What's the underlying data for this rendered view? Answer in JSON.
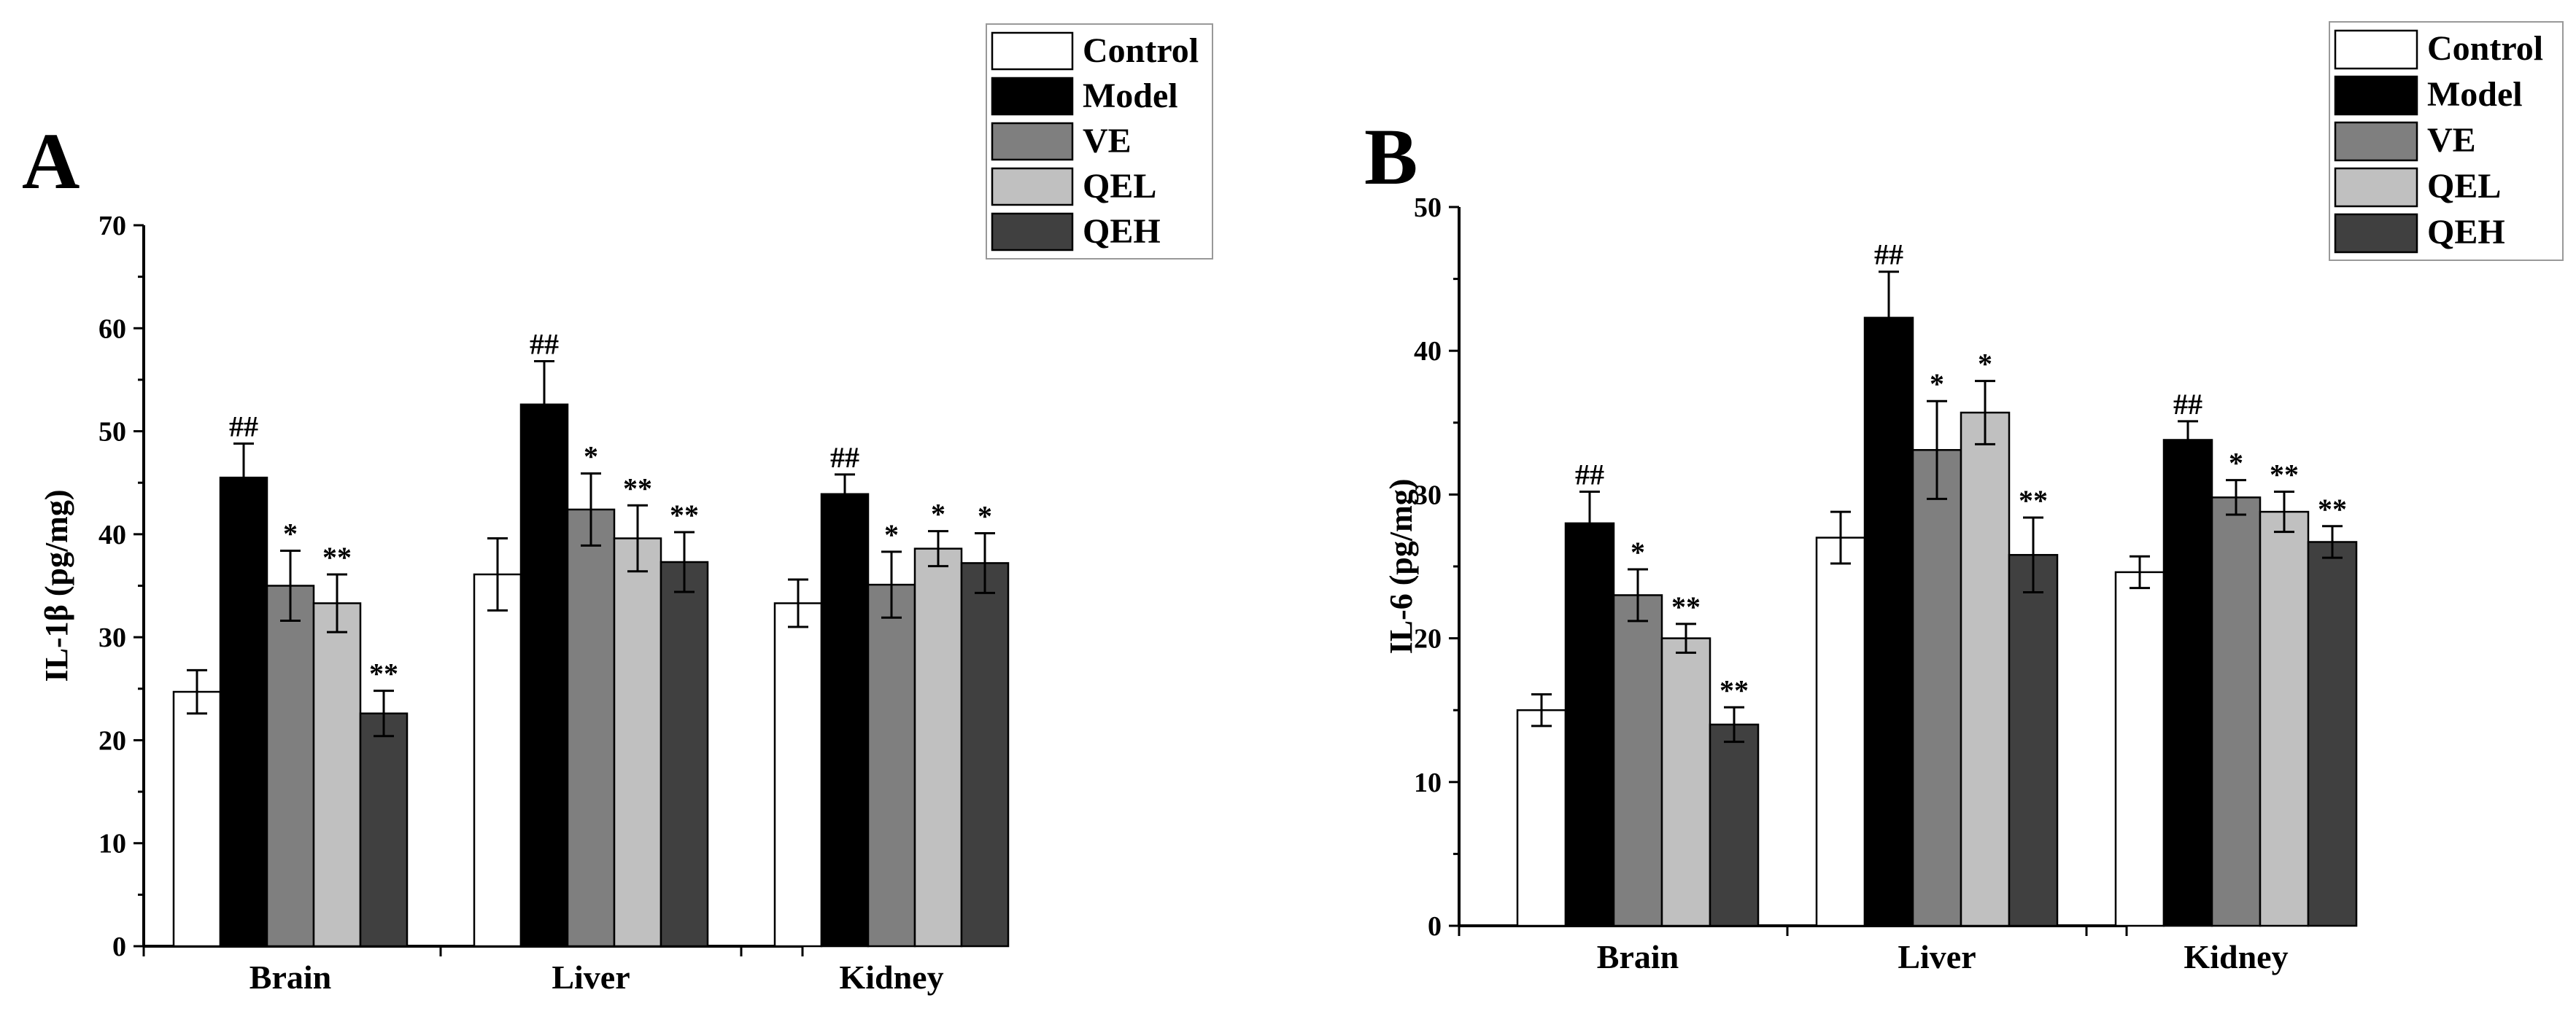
{
  "chart_data": [
    {
      "type": "bar",
      "panel": "A",
      "ylabel": "IL-1β (pg/mg)",
      "ylim": [
        0,
        70
      ],
      "yticks": [
        0,
        10,
        20,
        30,
        40,
        50,
        60,
        70
      ],
      "categories": [
        "Brain",
        "Liver",
        "Kidney"
      ],
      "legend_position": "top-right",
      "series": [
        {
          "name": "Control",
          "color": "#ffffff",
          "values": [
            24.7,
            36.1,
            33.3
          ],
          "errors": [
            2.1,
            3.5,
            2.3
          ],
          "sig": [
            "",
            "",
            ""
          ]
        },
        {
          "name": "Model",
          "color": "#000000",
          "values": [
            45.5,
            52.6,
            43.9
          ],
          "errors": [
            3.3,
            4.2,
            1.9
          ],
          "sig": [
            "##",
            "##",
            "##"
          ]
        },
        {
          "name": "VE",
          "color": "#7f7f7f",
          "values": [
            35.0,
            42.4,
            35.1
          ],
          "errors": [
            3.4,
            3.5,
            3.2
          ],
          "sig": [
            "*",
            "*",
            "*"
          ]
        },
        {
          "name": "QEL",
          "color": "#c0c0c0",
          "values": [
            33.3,
            39.6,
            38.6
          ],
          "errors": [
            2.8,
            3.2,
            1.7
          ],
          "sig": [
            "**",
            "**",
            "*"
          ]
        },
        {
          "name": "QEH",
          "color": "#404040",
          "values": [
            22.6,
            37.3,
            37.2
          ],
          "errors": [
            2.2,
            2.9,
            2.9
          ],
          "sig": [
            "**",
            "**",
            "*"
          ]
        }
      ]
    },
    {
      "type": "bar",
      "panel": "B",
      "ylabel": "IL-6 (pg/mg)",
      "ylim": [
        0,
        50
      ],
      "yticks": [
        0,
        10,
        20,
        30,
        40,
        50
      ],
      "categories": [
        "Brain",
        "Liver",
        "Kidney"
      ],
      "legend_position": "top-right",
      "series": [
        {
          "name": "Control",
          "color": "#ffffff",
          "values": [
            15.0,
            27.0,
            24.6
          ],
          "errors": [
            1.1,
            1.8,
            1.1
          ],
          "sig": [
            "",
            "",
            ""
          ]
        },
        {
          "name": "Model",
          "color": "#000000",
          "values": [
            28.0,
            42.3,
            33.8
          ],
          "errors": [
            2.2,
            3.2,
            1.3
          ],
          "sig": [
            "##",
            "##",
            "##"
          ]
        },
        {
          "name": "VE",
          "color": "#7f7f7f",
          "values": [
            23.0,
            33.1,
            29.8
          ],
          "errors": [
            1.8,
            3.4,
            1.2
          ],
          "sig": [
            "*",
            "*",
            "*"
          ]
        },
        {
          "name": "QEL",
          "color": "#c0c0c0",
          "values": [
            20.0,
            35.7,
            28.8
          ],
          "errors": [
            1.0,
            2.2,
            1.4
          ],
          "sig": [
            "**",
            "*",
            "**"
          ]
        },
        {
          "name": "QEH",
          "color": "#404040",
          "values": [
            14.0,
            25.8,
            26.7
          ],
          "errors": [
            1.2,
            2.6,
            1.1
          ],
          "sig": [
            "**",
            "**",
            "**"
          ]
        }
      ]
    }
  ]
}
